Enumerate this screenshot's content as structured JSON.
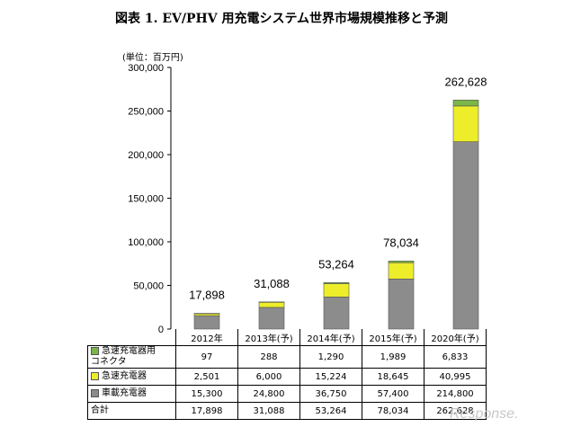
{
  "title": "図表 1. EV/PHV 用充電システム世界市場規模推移と予測",
  "unit": "(単位：百万円)",
  "colors": {
    "connector": "#7ab648",
    "quick": "#eded2a",
    "onboard": "#8c8c8c"
  },
  "chart_data": {
    "type": "bar",
    "stacked": true,
    "title": "図表 1. EV/PHV 用充電システム世界市場規模推移と予測",
    "ylabel": "(単位：百万円)",
    "ylim": [
      0,
      300000
    ],
    "yticks": [
      "0",
      "50,000",
      "100,000",
      "150,000",
      "200,000",
      "250,000",
      "300,000"
    ],
    "categories": [
      "2012年",
      "2013年(予)",
      "2014年(予)",
      "2015年(予)",
      "2020年(予)"
    ],
    "series": [
      {
        "name": "車載充電器",
        "color": "#8c8c8c",
        "values": [
          15300,
          24800,
          36750,
          57400,
          214800
        ]
      },
      {
        "name": "急速充電器",
        "color": "#eded2a",
        "values": [
          2501,
          6000,
          15224,
          18645,
          40995
        ]
      },
      {
        "name": "急速充電器用コネクタ",
        "color": "#7ab648",
        "values": [
          97,
          288,
          1290,
          1989,
          6833
        ]
      }
    ],
    "totals": [
      17898,
      31088,
      53264,
      78034,
      262628
    ],
    "total_labels": [
      "17,898",
      "31,088",
      "53,264",
      "78,034",
      "262,628"
    ],
    "axis_break": "2015年(予) – 2020年(予)",
    "legend": "table"
  },
  "table": {
    "headers": [
      "2012年",
      "2013年(予)",
      "2014年(予)",
      "2015年(予)",
      "2020年(予)"
    ],
    "rows": [
      {
        "label": "急速充電器用\nコネクタ",
        "swatch": "#7ab648",
        "cells": [
          "97",
          "288",
          "1,290",
          "1,989",
          "6,833"
        ]
      },
      {
        "label": "急速充電器",
        "swatch": "#eded2a",
        "cells": [
          "2,501",
          "6,000",
          "15,224",
          "18,645",
          "40,995"
        ]
      },
      {
        "label": "車載充電器",
        "swatch": "#8c8c8c",
        "cells": [
          "15,300",
          "24,800",
          "36,750",
          "57,400",
          "214,800"
        ]
      },
      {
        "label": "合計",
        "swatch": "",
        "cells": [
          "17,898",
          "31,088",
          "53,264",
          "78,034",
          "262,628"
        ]
      }
    ]
  },
  "watermark": "Response."
}
